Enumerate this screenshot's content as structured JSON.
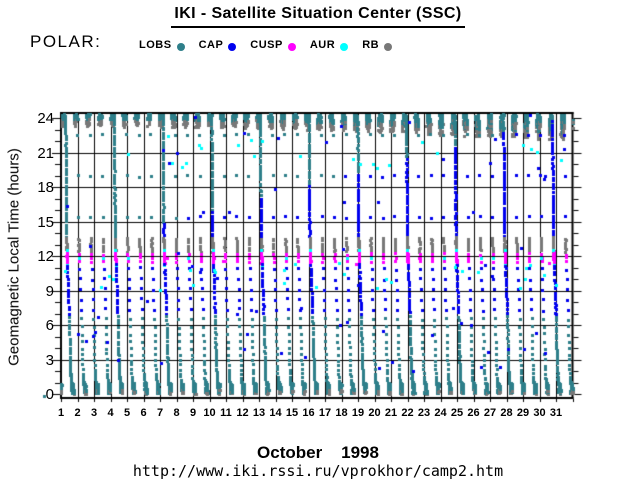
{
  "header": {
    "title": "IKI - Satellite Situation Center (SSC)"
  },
  "legend": {
    "satellite_label": "POLAR:"
  },
  "footer": {
    "month_label": "October    1998",
    "url": "http://www.iki.rssi.ru/vprokhor/camp2.htm"
  },
  "chart_data": {
    "type": "scatter",
    "title": "IKI - Satellite Situation Center (SSC)",
    "satellite": "POLAR",
    "xlabel": "October 1998",
    "ylabel": "Geomagnetic Local Time (hours)",
    "xlim": [
      1,
      32
    ],
    "ylim": [
      -0.35,
      24.43
    ],
    "x_ticks": [
      1,
      2,
      3,
      4,
      5,
      6,
      7,
      8,
      9,
      10,
      11,
      12,
      13,
      14,
      15,
      16,
      17,
      18,
      19,
      20,
      21,
      22,
      23,
      24,
      25,
      26,
      27,
      28,
      29,
      30,
      31
    ],
    "y_ticks": [
      0,
      3,
      6,
      9,
      12,
      15,
      18,
      21,
      24
    ],
    "y_minor_step": 1,
    "grid": true,
    "legend_position": "top",
    "series": [
      {
        "name": "LOBS",
        "color": "#2E7F8A"
      },
      {
        "name": "CAP",
        "color": "#0000EE"
      },
      {
        "name": "CUSP",
        "color": "#FF00FF"
      },
      {
        "name": "AUR",
        "color": "#00FFFF"
      },
      {
        "name": "RB",
        "color": "#787878"
      }
    ],
    "orbit_model": {
      "seed": 1998,
      "period_days": 0.7376,
      "first_orbit_start_day": 0.3,
      "num_orbits": 44,
      "dense_every": 4,
      "dense_offset": 1,
      "marker_px": 3,
      "segments": {
        "apogee_top": {
          "phase": [
            0.0,
            0.3
          ],
          "n": 52,
          "mlt_base": 24.25,
          "amp_day1": 0.28,
          "amp_day31": 1.6,
          "cycles_min": 1.4,
          "cycles_rand": 1.8,
          "mlt_cap": 24.4,
          "mlt_floor": 22.55,
          "gray_frac_day1": 0.18,
          "gray_frac_day31": 0.5,
          "gray_offset": -0.55,
          "gray_jitter": 0.3
        },
        "dusk_descent": {
          "phase": [
            0.3,
            0.375
          ],
          "mlt": [
            24.35,
            13.6
          ],
          "n_dense": 42,
          "n_sparse": 3,
          "thr_day1": 12.6,
          "thr_day31": 24.4
        },
        "rb_cluster": {
          "phase": [
            0.375,
            0.41
          ],
          "mlt": [
            13.6,
            12.35
          ],
          "n_dense": 15,
          "n_sparse": 7
        },
        "cusp_crossing": {
          "phase": [
            0.41,
            0.44
          ],
          "mlt": [
            12.35,
            11.35
          ],
          "n_dense": 12,
          "n_sparse": 3,
          "aur_edge_mlt": [
            12.5,
            11.2
          ],
          "aur_prob_sparse": 0.4
        },
        "cap_descent": {
          "phase": [
            0.44,
            0.6
          ],
          "mlt": [
            11.35,
            6.9
          ],
          "n_dense": 15,
          "n_sparse": 5
        },
        "lobe_descent": {
          "phase": [
            0.6,
            0.8
          ],
          "mlt": [
            6.9,
            0.9
          ],
          "n_dense": 30,
          "n_sparse": 14,
          "ease_pow": 1.7
        },
        "perigee_bottom": {
          "phase": [
            0.8,
            1.0
          ],
          "n": 40,
          "mlt_min": 0.1,
          "hump_amp": 0.95,
          "hump_cycles": 2.1,
          "gray_frac": 0.3,
          "gray_after_prog": 0.45
        }
      },
      "singles": {
        "cap": {
          "count": 68,
          "mlt_range": [
            2.0,
            24.35
          ]
        },
        "aur": {
          "count": 50,
          "mlt_bands": [
            [
              9.0,
              11.5
            ],
            [
              19.5,
              22.5
            ]
          ]
        },
        "cusp": {
          "count": 8,
          "mlt_range": [
            11.0,
            13.0
          ]
        }
      },
      "strays": [
        {
          "day": -0.03,
          "mlt": -0.15,
          "series": "LOBS"
        },
        {
          "day": 29.4,
          "mlt": 24.3,
          "series": "CAP"
        }
      ]
    }
  }
}
